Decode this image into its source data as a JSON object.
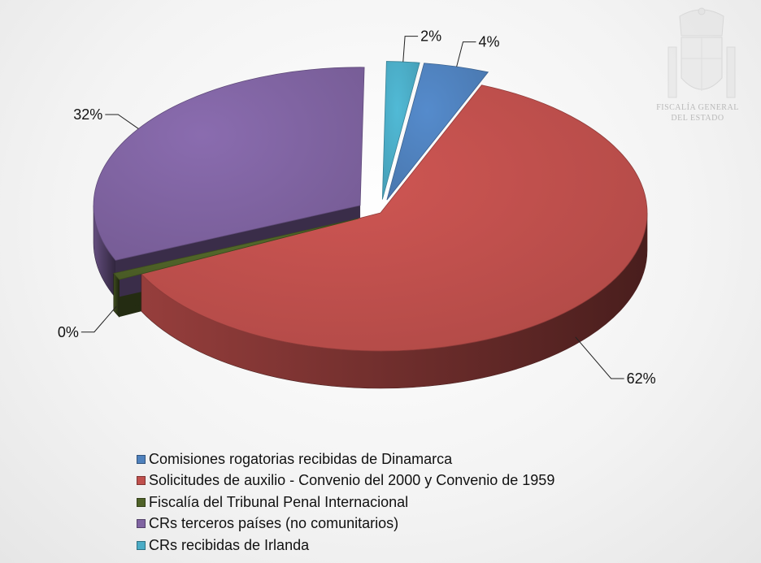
{
  "header": {
    "emblem_line1": "FISCALÍA GENERAL",
    "emblem_line2": "DEL ESTADO"
  },
  "chart_data": {
    "type": "pie",
    "title": "",
    "legend_position": "bottom",
    "categories": [
      "Comisiones rogatorias recibidas de Dinamarca",
      "Solicitudes de auxilio - Convenio del 2000 y Convenio de 1959",
      "Fiscalía del Tribunal Penal Internacional",
      "CRs terceros países (no comunitarios)",
      "CRs recibidas de Irlanda"
    ],
    "values": [
      4,
      62,
      0,
      32,
      2
    ],
    "labels": [
      "4%",
      "62%",
      "0%",
      "32%",
      "2%"
    ],
    "colors": [
      "#4f81bd",
      "#c0504d",
      "#4f6228",
      "#8064a2",
      "#4bacc6"
    ]
  }
}
